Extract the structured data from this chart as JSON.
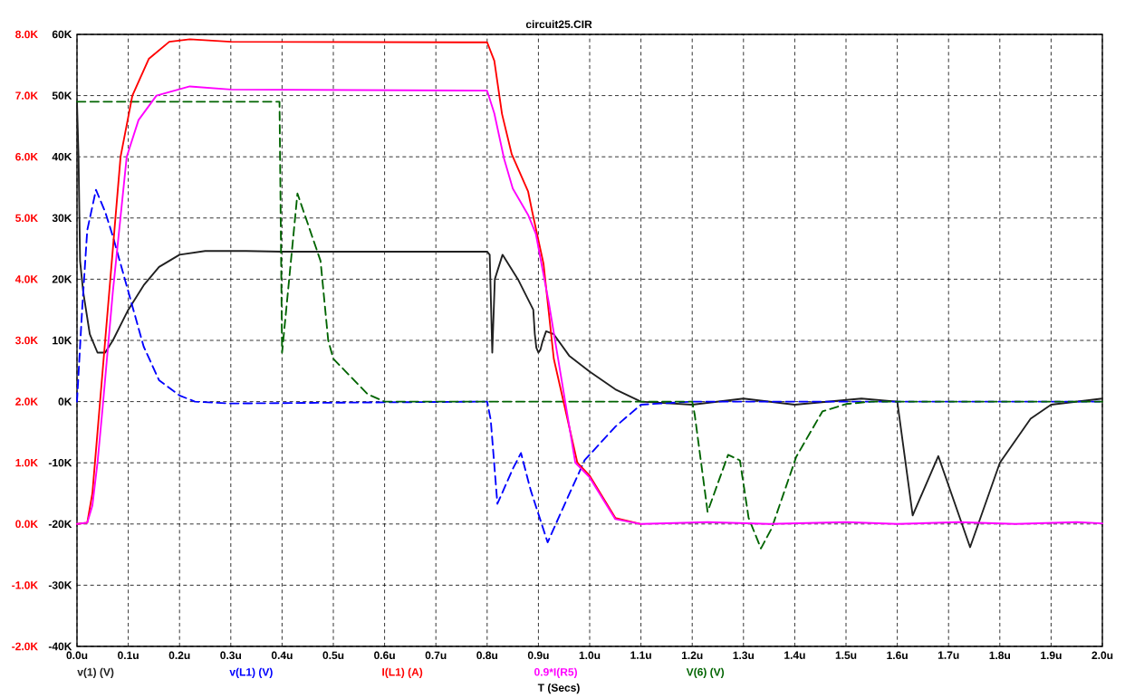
{
  "chart_data": {
    "type": "line",
    "title": "circuit25.CIR",
    "xlabel": "T (Secs)",
    "xlim": [
      0,
      2
    ],
    "xticks": [
      {
        "value": 0,
        "label": "0.0u"
      },
      {
        "value": 0.1,
        "label": "0.1u"
      },
      {
        "value": 0.2,
        "label": "0.2u"
      },
      {
        "value": 0.3,
        "label": "0.3u"
      },
      {
        "value": 0.4,
        "label": "0.4u"
      },
      {
        "value": 0.5,
        "label": "0.5u"
      },
      {
        "value": 0.6,
        "label": "0.6u"
      },
      {
        "value": 0.7,
        "label": "0.7u"
      },
      {
        "value": 0.8,
        "label": "0.8u"
      },
      {
        "value": 0.9,
        "label": "0.9u"
      },
      {
        "value": 1.0,
        "label": "1.0u"
      },
      {
        "value": 1.1,
        "label": "1.1u"
      },
      {
        "value": 1.2,
        "label": "1.2u"
      },
      {
        "value": 1.3,
        "label": "1.3u"
      },
      {
        "value": 1.4,
        "label": "1.4u"
      },
      {
        "value": 1.5,
        "label": "1.5u"
      },
      {
        "value": 1.6,
        "label": "1.6u"
      },
      {
        "value": 1.7,
        "label": "1.7u"
      },
      {
        "value": 1.8,
        "label": "1.8u"
      },
      {
        "value": 1.9,
        "label": "1.9u"
      },
      {
        "value": 2.0,
        "label": "2.0u"
      }
    ],
    "ylim": [
      -40000,
      60000
    ],
    "yticks": [
      {
        "value": -40000,
        "label": "-40K"
      },
      {
        "value": -30000,
        "label": "-30K"
      },
      {
        "value": -20000,
        "label": "-20K"
      },
      {
        "value": -10000,
        "label": "-10K"
      },
      {
        "value": 0,
        "label": "0K"
      },
      {
        "value": 10000,
        "label": "10K"
      },
      {
        "value": 20000,
        "label": "20K"
      },
      {
        "value": 30000,
        "label": "30K"
      },
      {
        "value": 40000,
        "label": "40K"
      },
      {
        "value": 50000,
        "label": "50K"
      },
      {
        "value": 60000,
        "label": "60K"
      }
    ],
    "y2lim": [
      -2000,
      8000
    ],
    "y2ticks": [
      {
        "value": -2000,
        "label": "-2.0K"
      },
      {
        "value": -1000,
        "label": "-1.0K"
      },
      {
        "value": 0,
        "label": "0.0K"
      },
      {
        "value": 1000,
        "label": "1.0K"
      },
      {
        "value": 2000,
        "label": "2.0K"
      },
      {
        "value": 3000,
        "label": "3.0K"
      },
      {
        "value": 4000,
        "label": "4.0K"
      },
      {
        "value": 5000,
        "label": "5.0K"
      },
      {
        "value": 6000,
        "label": "6.0K"
      },
      {
        "value": 7000,
        "label": "7.0K"
      },
      {
        "value": 8000,
        "label": "8.0K"
      }
    ],
    "grid": true,
    "legend": "bottom",
    "series": [
      {
        "name": "v(1) (V)",
        "color": "#202020",
        "line_style": "solid",
        "x": [
          0,
          0.003,
          0.006,
          0.012,
          0.025,
          0.04,
          0.055,
          0.07,
          0.1,
          0.13,
          0.16,
          0.2,
          0.25,
          0.33,
          0.4,
          0.8,
          0.805,
          0.81,
          0.815,
          0.83,
          0.86,
          0.89,
          0.893,
          0.896,
          0.9,
          0.904,
          0.908,
          0.915,
          0.93,
          0.96,
          1.0,
          1.05,
          1.1,
          1.2,
          1.3,
          1.4,
          1.53,
          1.6,
          1.63,
          1.68,
          1.742,
          1.8,
          1.86,
          1.9,
          2.0
        ],
        "values": [
          49000,
          40000,
          23000,
          18000,
          11000,
          8000,
          8000,
          10000,
          15000,
          19000,
          22000,
          24000,
          24600,
          24600,
          24500,
          24500,
          24000,
          8000,
          20000,
          24000,
          20000,
          15000,
          11000,
          8800,
          8000,
          8500,
          9800,
          11500,
          11000,
          7500,
          4900,
          2000,
          0,
          -500,
          500,
          -500,
          500,
          0,
          -18600,
          -8900,
          -23800,
          -10000,
          -2800,
          -500,
          500
        ]
      },
      {
        "name": "v(L1) (V)",
        "color": "#0000ff",
        "line_style": "dashed",
        "x": [
          0,
          0.01,
          0.02,
          0.037,
          0.055,
          0.07,
          0.1,
          0.13,
          0.16,
          0.2,
          0.23,
          0.3,
          0.8,
          0.807,
          0.82,
          0.85,
          0.866,
          0.885,
          0.918,
          0.95,
          0.99,
          1.05,
          1.1,
          1.2,
          2.0
        ],
        "values": [
          0,
          15000,
          28000,
          34600,
          31000,
          27000,
          18000,
          9000,
          3500,
          1000,
          0,
          -300,
          0,
          -3000,
          -16700,
          -11000,
          -8400,
          -14500,
          -23000,
          -17000,
          -9600,
          -4100,
          -500,
          0,
          0
        ]
      },
      {
        "name": "I(L1) (A)",
        "color": "#ff0000",
        "line_style": "solid",
        "axis": "y2",
        "x": [
          0,
          0.02,
          0.03,
          0.04,
          0.05,
          0.07,
          0.085,
          0.108,
          0.14,
          0.18,
          0.22,
          0.3,
          0.8,
          0.814,
          0.829,
          0.848,
          0.88,
          0.888,
          0.91,
          0.93,
          0.976,
          1.0,
          1.05,
          1.1
        ],
        "values": [
          0,
          20,
          500,
          1500,
          2500,
          4500,
          6000,
          7000,
          7600,
          7880,
          7920,
          7880,
          7870,
          7570,
          6700,
          6040,
          5430,
          5100,
          4250,
          2700,
          1000,
          790,
          100,
          0
        ]
      },
      {
        "name": "0.9*I(R5)",
        "color": "#ff00ff",
        "line_style": "solid",
        "axis": "y2",
        "x": [
          0,
          0.02,
          0.03,
          0.04,
          0.05,
          0.07,
          0.097,
          0.12,
          0.155,
          0.22,
          0.3,
          0.8,
          0.814,
          0.833,
          0.85,
          0.88,
          0.895,
          0.92,
          0.972,
          1.0,
          1.05,
          1.1,
          1.23,
          1.35,
          1.5,
          1.6,
          1.72,
          1.83,
          1.95,
          2.0
        ],
        "values": [
          0,
          20,
          300,
          1000,
          1900,
          3800,
          6000,
          6600,
          7000,
          7150,
          7100,
          7080,
          6710,
          5970,
          5480,
          5050,
          4740,
          3630,
          1000,
          760,
          80,
          0,
          30,
          0,
          30,
          0,
          30,
          0,
          30,
          10
        ]
      },
      {
        "name": "V(6) (V)",
        "color": "#006400",
        "line_style": "dashed",
        "x": [
          0,
          0.395,
          0.4,
          0.43,
          0.475,
          0.49,
          0.5,
          0.567,
          0.6,
          1.2,
          1.205,
          1.23,
          1.27,
          1.293,
          1.31,
          1.334,
          1.355,
          1.403,
          1.454,
          1.5,
          1.55,
          2.0
        ],
        "values": [
          49000,
          49000,
          8000,
          34000,
          23000,
          10000,
          7000,
          1200,
          0,
          0,
          -2200,
          -18000,
          -8700,
          -9600,
          -19000,
          -24000,
          -20700,
          -9000,
          -1600,
          -400,
          0,
          0
        ]
      }
    ]
  }
}
